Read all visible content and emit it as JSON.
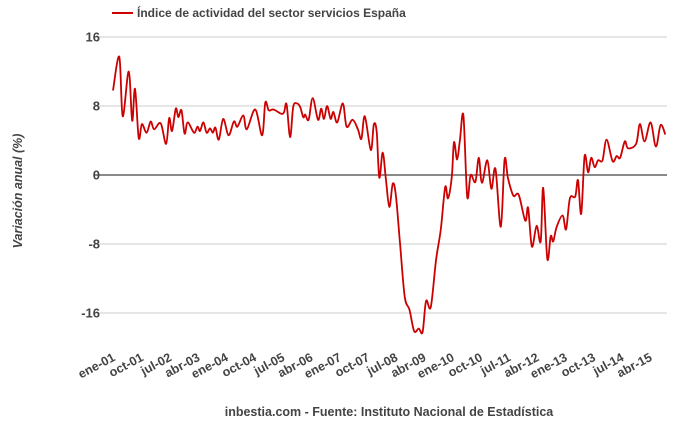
{
  "chart_data": {
    "type": "line",
    "title": "",
    "legend": {
      "entries": [
        "Índice de actividad del sector servicios España"
      ],
      "placement": "top-left"
    },
    "xlabel": "",
    "ylabel": "Variación anual (%)",
    "footer": "inbestia.com - Fuente: Instituto Nacional de Estadística",
    "ylim": [
      -16,
      16
    ],
    "yticks": [
      16,
      8,
      0,
      -8,
      -16
    ],
    "x_unit": "months since ene-01",
    "xticks": [
      {
        "m": 0,
        "label": "ene-01"
      },
      {
        "m": 9,
        "label": "oct-01"
      },
      {
        "m": 18,
        "label": "jul-02"
      },
      {
        "m": 27,
        "label": "abr-03"
      },
      {
        "m": 36,
        "label": "ene-04"
      },
      {
        "m": 45,
        "label": "oct-04"
      },
      {
        "m": 54,
        "label": "jul-05"
      },
      {
        "m": 63,
        "label": "abr-06"
      },
      {
        "m": 72,
        "label": "ene-07"
      },
      {
        "m": 81,
        "label": "oct-07"
      },
      {
        "m": 90,
        "label": "jul-08"
      },
      {
        "m": 99,
        "label": "abr-09"
      },
      {
        "m": 108,
        "label": "ene-10"
      },
      {
        "m": 117,
        "label": "oct-10"
      },
      {
        "m": 126,
        "label": "jul-11"
      },
      {
        "m": 135,
        "label": "abr-12"
      },
      {
        "m": 144,
        "label": "ene-13"
      },
      {
        "m": 153,
        "label": "oct-13"
      },
      {
        "m": 162,
        "label": "jul-14"
      },
      {
        "m": 171,
        "label": "abr-15"
      }
    ],
    "grid": true,
    "color": "#cc0000",
    "series": [
      {
        "name": "Índice de actividad del sector servicios España",
        "points": [
          [
            0,
            9.8
          ],
          [
            2,
            13.7
          ],
          [
            3.1,
            6.8
          ],
          [
            5,
            12
          ],
          [
            6.1,
            6.3
          ],
          [
            7,
            10
          ],
          [
            8.2,
            4.3
          ],
          [
            9.2,
            5.9
          ],
          [
            10.7,
            4.9
          ],
          [
            12,
            6.2
          ],
          [
            13.1,
            5.3
          ],
          [
            15.2,
            6
          ],
          [
            16.9,
            3.6
          ],
          [
            17.9,
            6.6
          ],
          [
            18.8,
            5.1
          ],
          [
            20,
            7.7
          ],
          [
            20.8,
            6.7
          ],
          [
            21.8,
            7.5
          ],
          [
            22.8,
            4.8
          ],
          [
            23.8,
            6.1
          ],
          [
            25.8,
            4.9
          ],
          [
            26.9,
            5.6
          ],
          [
            27.7,
            5.1
          ],
          [
            28.8,
            6.1
          ],
          [
            29.8,
            4.9
          ],
          [
            30.9,
            5.4
          ],
          [
            31.8,
            4.9
          ],
          [
            32.6,
            5.5
          ],
          [
            33.7,
            4.1
          ],
          [
            35.1,
            6.5
          ],
          [
            36.8,
            4.6
          ],
          [
            38.5,
            6.2
          ],
          [
            39.6,
            5.6
          ],
          [
            41.5,
            6.9
          ],
          [
            42.6,
            5.3
          ],
          [
            45.3,
            7.6
          ],
          [
            47.5,
            4.6
          ],
          [
            48.5,
            8.4
          ],
          [
            49.6,
            7.5
          ],
          [
            51.1,
            7.6
          ],
          [
            53.6,
            7.1
          ],
          [
            54.5,
            7.3
          ],
          [
            55.3,
            8.2
          ],
          [
            56.4,
            4.4
          ],
          [
            57.4,
            7.9
          ],
          [
            58.5,
            8.3
          ],
          [
            59.6,
            7.9
          ],
          [
            60.6,
            6.7
          ],
          [
            61.2,
            7
          ],
          [
            62.3,
            6.4
          ],
          [
            63.6,
            8.9
          ],
          [
            65.3,
            6.4
          ],
          [
            66.3,
            7.7
          ],
          [
            67.2,
            6.5
          ],
          [
            68.2,
            8
          ],
          [
            69.3,
            6.5
          ],
          [
            70.2,
            7.3
          ],
          [
            71.4,
            6.1
          ],
          [
            73.2,
            8.3
          ],
          [
            74.4,
            5.6
          ],
          [
            76.3,
            6.4
          ],
          [
            78,
            5.3
          ],
          [
            79.1,
            4.2
          ],
          [
            80.2,
            6.8
          ],
          [
            82.1,
            2.9
          ],
          [
            83.1,
            5.9
          ],
          [
            84,
            4.9
          ],
          [
            84.8,
            -0.3
          ],
          [
            85.9,
            2.6
          ],
          [
            86.9,
            -0.5
          ],
          [
            88,
            -3.7
          ],
          [
            89.1,
            -1
          ],
          [
            90.1,
            -2.4
          ],
          [
            91.4,
            -7.9
          ],
          [
            92.9,
            -14.1
          ],
          [
            94.4,
            -15.6
          ],
          [
            95.9,
            -18.1
          ],
          [
            97.4,
            -17.8
          ],
          [
            98.6,
            -18.2
          ],
          [
            99.7,
            -14.6
          ],
          [
            101.2,
            -15.3
          ],
          [
            102.9,
            -9.8
          ],
          [
            104.4,
            -6.3
          ],
          [
            105.8,
            -1.4
          ],
          [
            106.7,
            -2.7
          ],
          [
            107.9,
            -0.2
          ],
          [
            108.6,
            3.8
          ],
          [
            109.6,
            1.8
          ],
          [
            110.5,
            4.1
          ],
          [
            111.6,
            6.9
          ],
          [
            112.8,
            -2.5
          ],
          [
            113.9,
            0
          ],
          [
            115.4,
            -0.8
          ],
          [
            116.5,
            2
          ],
          [
            117.5,
            -0.9
          ],
          [
            119.2,
            1.7
          ],
          [
            120.5,
            -1.6
          ],
          [
            121.8,
            0.7
          ],
          [
            123.5,
            -6
          ],
          [
            124.7,
            1.8
          ],
          [
            125.8,
            -0.4
          ],
          [
            127.5,
            -2.4
          ],
          [
            129.2,
            -2.3
          ],
          [
            131.3,
            -5.3
          ],
          [
            132.2,
            -3.8
          ],
          [
            133.4,
            -8.3
          ],
          [
            134.9,
            -5.9
          ],
          [
            136.2,
            -7.7
          ],
          [
            137,
            -1.5
          ],
          [
            138.3,
            -9.7
          ],
          [
            139.4,
            -7.1
          ],
          [
            140.2,
            -7.7
          ],
          [
            141.3,
            -6
          ],
          [
            143.2,
            -4.7
          ],
          [
            144.3,
            -6.3
          ],
          [
            145.5,
            -2.7
          ],
          [
            147.2,
            -2.5
          ],
          [
            148.1,
            -0.6
          ],
          [
            149.1,
            -4.5
          ],
          [
            150.2,
            2.2
          ],
          [
            151.3,
            0.3
          ],
          [
            152.3,
            2
          ],
          [
            153.4,
            0.9
          ],
          [
            154.5,
            1.7
          ],
          [
            155.9,
            1.7
          ],
          [
            157.2,
            4.1
          ],
          [
            159.1,
            1.6
          ],
          [
            160.4,
            2.2
          ],
          [
            161.5,
            2
          ],
          [
            163,
            3.9
          ],
          [
            164,
            3.1
          ],
          [
            166.6,
            3.6
          ],
          [
            167.8,
            5.9
          ],
          [
            169.3,
            3.9
          ],
          [
            171.2,
            6.1
          ],
          [
            172.9,
            3.3
          ],
          [
            174.4,
            5.8
          ],
          [
            175.9,
            4.7
          ]
        ]
      }
    ]
  }
}
